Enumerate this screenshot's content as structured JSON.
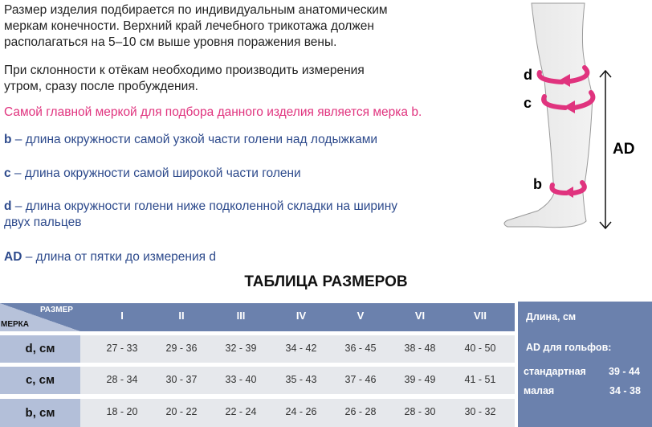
{
  "intro": {
    "p1": [
      "Размер изделия подбирается по индивидуальным анатомическим",
      "меркам конечности. Верхний край лечебного трикотажа должен",
      "располагаться на 5–10 см выше уровня поражения вены."
    ],
    "p2": [
      "При склонности к отёкам необходимо производить измерения",
      "утром, сразу после пробуждения."
    ],
    "highlight": "Самой главной меркой для подбора данного изделия является мерка b.",
    "defs": [
      {
        "key": "b",
        "text": " – длина окружности самой узкой части голени над лодыжками"
      },
      {
        "key": "c",
        "text": " – длина окружности самой широкой части голени"
      },
      {
        "key": "d",
        "text": " – длина окружности голени ниже подколенной складки на ширину",
        "text2": "двух пальцев"
      },
      {
        "key": "AD",
        "text": " – длина от пятки до измерения d"
      }
    ]
  },
  "diagram": {
    "labels": {
      "d": "d",
      "c": "c",
      "b": "b",
      "ad": "AD"
    },
    "accent": "#e0337e"
  },
  "table": {
    "title": "ТАБЛИЦА РАЗМЕРОВ",
    "corner_top": "РАЗМЕР",
    "corner_bottom": "МЕРКА",
    "sizes": [
      "I",
      "II",
      "III",
      "IV",
      "V",
      "VI",
      "VII"
    ],
    "rows": [
      {
        "label": "d, см",
        "values": [
          "27 - 33",
          "29 - 36",
          "32 - 39",
          "34 - 42",
          "36 - 45",
          "38 - 48",
          "40 - 50"
        ]
      },
      {
        "label": "c, см",
        "values": [
          "28 - 34",
          "30 - 37",
          "33 - 40",
          "35 - 43",
          "37 - 46",
          "39 - 49",
          "41 - 51"
        ]
      },
      {
        "label": "b, см",
        "values": [
          "18 - 20",
          "20 - 22",
          "22 - 24",
          "24 - 26",
          "26 - 28",
          "28 - 30",
          "30 - 32"
        ]
      }
    ]
  },
  "length_panel": {
    "title": "Длина, см",
    "subtitle": "AD для гольфов:",
    "items": [
      {
        "label": "стандартная",
        "value": "39 - 44"
      },
      {
        "label": "малая",
        "value": "34 - 38"
      }
    ]
  }
}
